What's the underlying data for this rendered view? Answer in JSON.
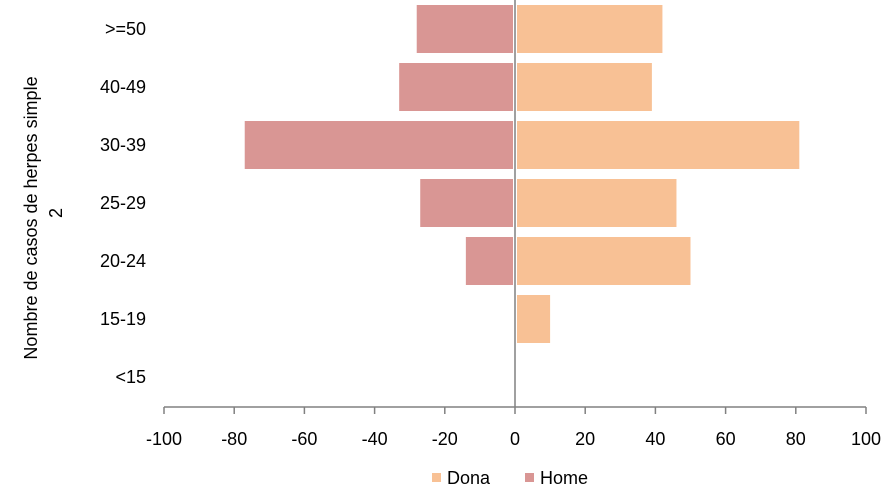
{
  "chart_data": {
    "type": "bar",
    "orientation": "horizontal",
    "categories": [
      ">=50",
      "40-49",
      "30-39",
      "25-29",
      "20-24",
      "15-19",
      "<15"
    ],
    "series": [
      {
        "name": "Dona",
        "color": "#F8C195",
        "values": [
          42,
          39,
          81,
          46,
          50,
          10,
          0
        ]
      },
      {
        "name": "Home",
        "color": "#D99694",
        "values": [
          -28,
          -33,
          -77,
          -27,
          -14,
          0,
          0
        ]
      }
    ],
    "xlim": [
      -100,
      100
    ],
    "xticks": [
      -100,
      -80,
      -60,
      -40,
      -20,
      0,
      20,
      40,
      60,
      80,
      100
    ],
    "ylabel_lines": [
      "Nombre de casos de herpes simple",
      "2"
    ],
    "xlabel": "",
    "title": "",
    "grid": false,
    "legend_position": "bottom",
    "axis_color": "#808080"
  }
}
